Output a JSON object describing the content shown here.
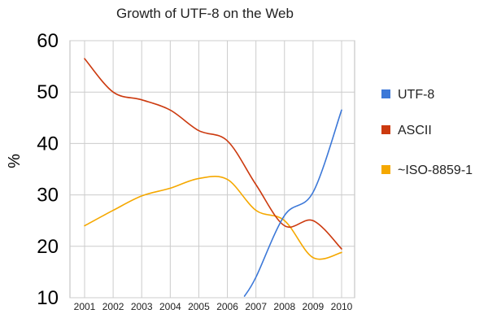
{
  "chart_data": {
    "type": "line",
    "title": "Growth of UTF-8 on the Web",
    "xlabel": "",
    "ylabel": "%",
    "ylim": [
      10,
      60
    ],
    "yticks": [
      "10",
      "20",
      "30",
      "40",
      "50",
      "60"
    ],
    "categories": [
      "2001",
      "2002",
      "2003",
      "2004",
      "2005",
      "2006",
      "2007",
      "2008",
      "2009",
      "2010"
    ],
    "grid": true,
    "legend_position": "right",
    "series": [
      {
        "name": "UTF-8",
        "color": "#3c78d8",
        "points": [
          [
            2006.6,
            10.3
          ],
          [
            2007,
            14
          ],
          [
            2008,
            26
          ],
          [
            2009,
            30.5
          ],
          [
            2010,
            46.5
          ]
        ]
      },
      {
        "name": "ASCII",
        "color": "#cc3a0f",
        "points": [
          [
            2001,
            56.5
          ],
          [
            2002,
            50
          ],
          [
            2003,
            48.5
          ],
          [
            2004,
            46.5
          ],
          [
            2005,
            42.5
          ],
          [
            2006,
            40.5
          ],
          [
            2007,
            32
          ],
          [
            2008,
            24
          ],
          [
            2009,
            25
          ],
          [
            2010,
            19.5
          ]
        ]
      },
      {
        "name": "~ISO-8859-1",
        "color": "#f5a800",
        "points": [
          [
            2001,
            24
          ],
          [
            2002,
            27
          ],
          [
            2003,
            29.8
          ],
          [
            2004,
            31.3
          ],
          [
            2005,
            33.2
          ],
          [
            2006,
            33
          ],
          [
            2007,
            27
          ],
          [
            2008,
            25
          ],
          [
            2009,
            17.8
          ],
          [
            2010,
            18.8
          ]
        ]
      }
    ]
  }
}
